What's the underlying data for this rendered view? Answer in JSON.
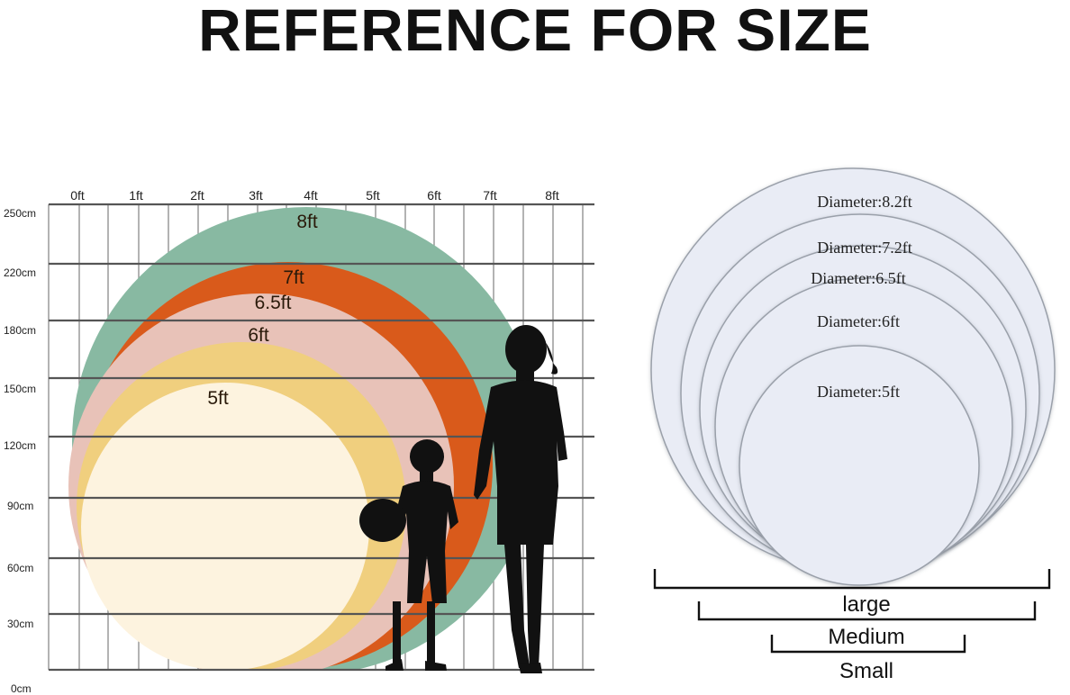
{
  "title": "REFERENCE FOR SIZE",
  "ft_ticks": [
    "0ft",
    "1ft",
    "2ft",
    "3ft",
    "4ft",
    "5ft",
    "6ft",
    "7ft",
    "8ft"
  ],
  "cm_ticks": [
    "250cm",
    "220cm",
    "180cm",
    "150cm",
    "120cm",
    "90cm",
    "60cm",
    "30cm",
    "0cm"
  ],
  "size_arcs": [
    {
      "label": "8ft",
      "color": "#88b9a2"
    },
    {
      "label": "7ft",
      "color": "#d95a1b"
    },
    {
      "label": "6.5ft",
      "color": "#e8c2b8"
    },
    {
      "label": "6ft",
      "color": "#f0cf7e"
    },
    {
      "label": "5ft",
      "color": "#fdf3df"
    }
  ],
  "circles": [
    {
      "label": "Diameter:8.2ft"
    },
    {
      "label": "Diameter:7.2ft"
    },
    {
      "label": "Diameter:6.5ft"
    },
    {
      "label": "Diameter:6ft"
    },
    {
      "label": "Diameter:5ft"
    }
  ],
  "brackets": {
    "large": "large",
    "medium": "Medium",
    "small": "Small"
  },
  "colors": {
    "grid": "#555555",
    "circle_fill": "#e9ecf5",
    "circle_edge": "#9aa0aa",
    "silhouette": "#111111"
  }
}
